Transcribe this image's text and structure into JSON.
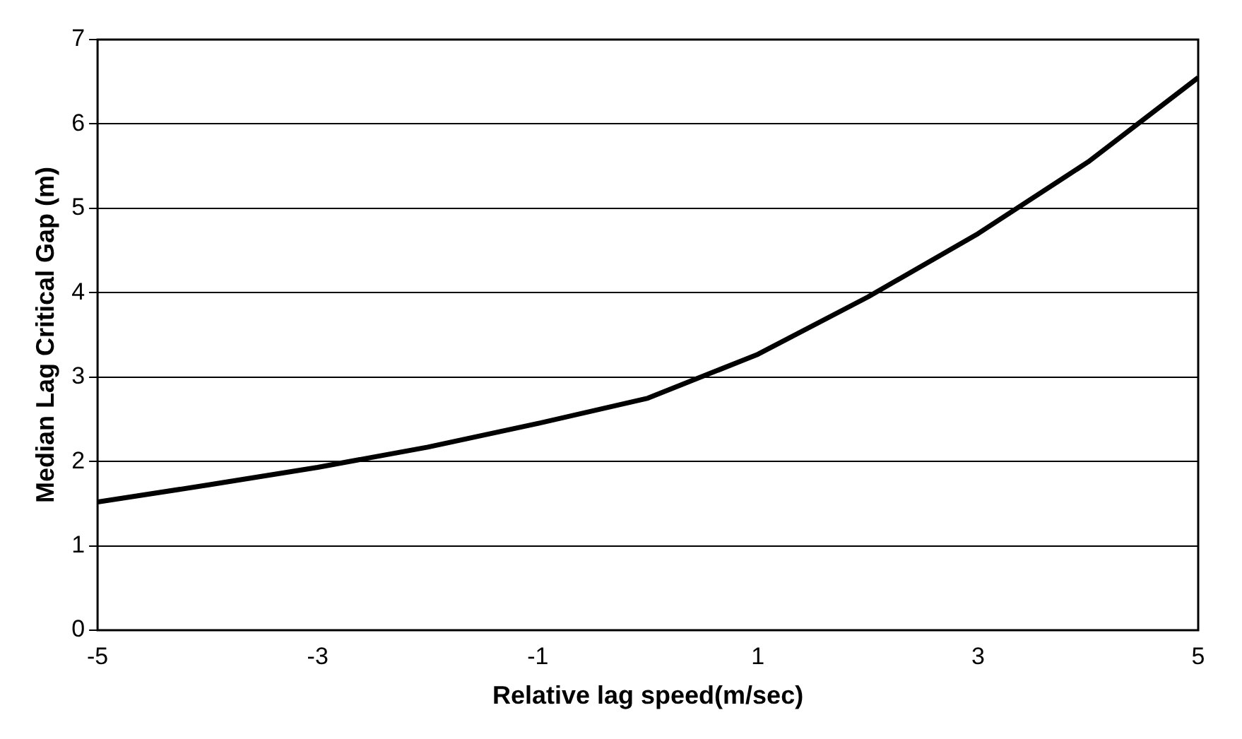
{
  "chart_data": {
    "type": "line",
    "xlabel": "Relative lag speed(m/sec)",
    "ylabel": "Median Lag Critical Gap (m)",
    "x": [
      -5,
      -4,
      -3,
      -2,
      -1,
      0,
      1,
      2,
      3,
      4,
      5
    ],
    "series": [
      {
        "color": "#000000",
        "values": [
          1.52,
          1.72,
          1.93,
          2.17,
          2.45,
          2.75,
          3.27,
          3.95,
          4.7,
          5.55,
          6.55
        ]
      }
    ],
    "xlim": [
      -5,
      5
    ],
    "xticks": [
      -5,
      -3,
      -1,
      1,
      3,
      5
    ],
    "ylim": [
      0,
      7
    ],
    "yticks": [
      0,
      1,
      2,
      3,
      4,
      5,
      6,
      7
    ],
    "grid": "y",
    "legend": false,
    "marker": "none",
    "line_style": "solid"
  }
}
